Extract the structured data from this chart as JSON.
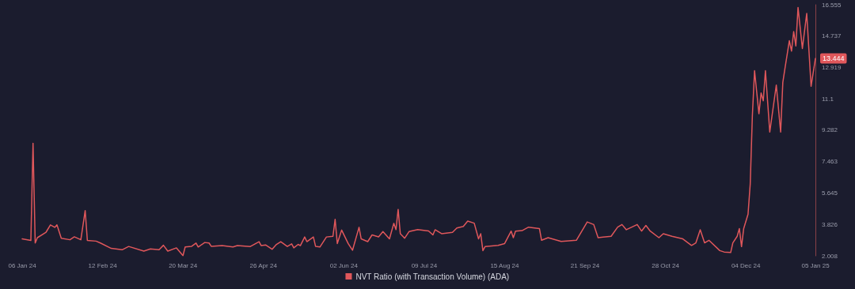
{
  "chart_data": {
    "type": "line",
    "x": [
      "2024-01-06",
      "2024-01-10",
      "2024-01-11",
      "2024-01-12",
      "2024-01-13",
      "2024-01-17",
      "2024-01-19",
      "2024-01-21",
      "2024-01-22",
      "2024-01-24",
      "2024-01-28",
      "2024-01-30",
      "2024-02-02",
      "2024-02-04",
      "2024-02-05",
      "2024-02-09",
      "2024-02-11",
      "2024-02-16",
      "2024-02-21",
      "2024-02-24",
      "2024-03-02",
      "2024-03-05",
      "2024-03-09",
      "2024-03-11",
      "2024-03-13",
      "2024-03-17",
      "2024-03-20",
      "2024-03-21",
      "2024-03-24",
      "2024-03-26",
      "2024-03-27",
      "2024-03-30",
      "2024-04-01",
      "2024-04-02",
      "2024-04-07",
      "2024-04-12",
      "2024-04-14",
      "2024-04-20",
      "2024-04-24",
      "2024-04-25",
      "2024-04-27",
      "2024-04-30",
      "2024-05-02",
      "2024-05-04",
      "2024-05-07",
      "2024-05-09",
      "2024-05-10",
      "2024-05-12",
      "2024-05-13",
      "2024-05-15",
      "2024-05-16",
      "2024-05-19",
      "2024-05-20",
      "2024-05-22",
      "2024-05-25",
      "2024-05-28",
      "2024-05-29",
      "2024-05-30",
      "2024-06-01",
      "2024-06-04",
      "2024-06-06",
      "2024-06-09",
      "2024-06-10",
      "2024-06-13",
      "2024-06-15",
      "2024-06-18",
      "2024-06-20",
      "2024-06-23",
      "2024-06-25",
      "2024-06-26",
      "2024-06-27",
      "2024-06-28",
      "2024-06-30",
      "2024-07-02",
      "2024-07-06",
      "2024-07-11",
      "2024-07-13",
      "2024-07-14",
      "2024-07-17",
      "2024-07-22",
      "2024-07-24",
      "2024-07-27",
      "2024-07-29",
      "2024-08-01",
      "2024-08-03",
      "2024-08-04",
      "2024-08-05",
      "2024-08-06",
      "2024-08-12",
      "2024-08-15",
      "2024-08-18",
      "2024-08-19",
      "2024-08-20",
      "2024-08-23",
      "2024-08-26",
      "2024-08-31",
      "2024-09-01",
      "2024-09-04",
      "2024-09-10",
      "2024-09-17",
      "2024-09-22",
      "2024-09-25",
      "2024-09-27",
      "2024-10-03",
      "2024-10-06",
      "2024-10-08",
      "2024-10-10",
      "2024-10-15",
      "2024-10-17",
      "2024-10-19",
      "2024-10-21",
      "2024-10-25",
      "2024-10-27",
      "2024-10-31",
      "2024-11-05",
      "2024-11-09",
      "2024-11-11",
      "2024-11-13",
      "2024-11-15",
      "2024-11-17",
      "2024-11-22",
      "2024-11-24",
      "2024-11-27",
      "2024-11-28",
      "2024-11-30",
      "2024-12-01",
      "2024-12-02",
      "2024-12-03",
      "2024-12-05",
      "2024-12-06",
      "2024-12-07",
      "2024-12-08",
      "2024-12-10",
      "2024-12-11",
      "2024-12-12",
      "2024-12-13",
      "2024-12-15",
      "2024-12-18",
      "2024-12-20",
      "2024-12-21",
      "2024-12-22",
      "2024-12-24",
      "2024-12-25",
      "2024-12-26",
      "2024-12-27",
      "2024-12-28",
      "2024-12-30",
      "2025-01-01",
      "2025-01-03",
      "2025-01-05"
    ],
    "series": [
      {
        "name": "NVT Ratio (with Transaction Volume) (ADA)",
        "color": "#e0575b",
        "values": [
          2.99,
          2.9,
          8.53,
          2.75,
          3.06,
          3.38,
          3.8,
          3.66,
          3.8,
          3.03,
          2.94,
          3.11,
          2.94,
          4.63,
          2.9,
          2.86,
          2.75,
          2.44,
          2.36,
          2.55,
          2.28,
          2.41,
          2.36,
          2.62,
          2.28,
          2.47,
          2.02,
          2.52,
          2.56,
          2.75,
          2.52,
          2.78,
          2.75,
          2.56,
          2.6,
          2.52,
          2.6,
          2.55,
          2.83,
          2.6,
          2.64,
          2.39,
          2.67,
          2.83,
          2.55,
          2.7,
          2.47,
          2.67,
          2.6,
          3.1,
          2.83,
          3.1,
          2.56,
          2.52,
          3.1,
          3.14,
          4.12,
          2.72,
          3.5,
          2.72,
          2.33,
          3.66,
          2.99,
          2.83,
          3.22,
          3.11,
          3.41,
          2.99,
          3.89,
          3.53,
          4.7,
          3.29,
          3.03,
          3.41,
          3.53,
          3.45,
          3.22,
          3.52,
          3.29,
          3.37,
          3.62,
          3.71,
          4.02,
          3.9,
          2.99,
          3.29,
          2.31,
          2.54,
          2.61,
          2.72,
          3.44,
          3.06,
          3.44,
          3.47,
          3.67,
          3.59,
          2.91,
          3.06,
          2.84,
          2.91,
          3.97,
          3.82,
          3.06,
          3.14,
          3.67,
          3.82,
          3.52,
          3.82,
          3.44,
          3.77,
          3.44,
          3.06,
          3.29,
          3.14,
          2.99,
          2.61,
          2.76,
          3.52,
          2.76,
          2.91,
          2.31,
          2.23,
          2.2,
          2.76,
          3.14,
          3.59,
          2.54,
          3.59,
          4.42,
          6.16,
          10.16,
          12.73,
          10.24,
          11.44,
          10.99,
          12.73,
          9.18,
          11.9,
          9.18,
          12.05,
          12.88,
          14.47,
          13.87,
          15.0,
          14.17,
          16.4,
          14.02,
          16.05,
          11.83,
          13.444
        ]
      }
    ],
    "xlim": [
      "2024-01-06",
      "2025-01-05"
    ],
    "xticks": [
      {
        "value": "2024-01-06",
        "label": "06 Jan 24"
      },
      {
        "value": "2024-02-12",
        "label": "12 Feb 24"
      },
      {
        "value": "2024-03-20",
        "label": "20 Mar 24"
      },
      {
        "value": "2024-04-26",
        "label": "26 Apr 24"
      },
      {
        "value": "2024-06-02",
        "label": "02 Jun 24"
      },
      {
        "value": "2024-07-09",
        "label": "09 Jul 24"
      },
      {
        "value": "2024-08-15",
        "label": "15 Aug 24"
      },
      {
        "value": "2024-09-21",
        "label": "21 Sep 24"
      },
      {
        "value": "2024-10-28",
        "label": "28 Oct 24"
      },
      {
        "value": "2024-12-04",
        "label": "04 Dec 24"
      },
      {
        "value": "2025-01-05",
        "label": "05 Jan 25"
      }
    ],
    "ylim": [
      2.008,
      16.555
    ],
    "yticks": [
      2.008,
      3.826,
      5.645,
      7.463,
      9.282,
      11.1,
      12.919,
      14.737,
      16.555
    ],
    "annotations": [
      {
        "text": "13.444",
        "x": "2025-01-05",
        "y": 13.444
      }
    ],
    "legend": "bottom",
    "grid": false,
    "marker": "none",
    "line_style": "solid"
  }
}
